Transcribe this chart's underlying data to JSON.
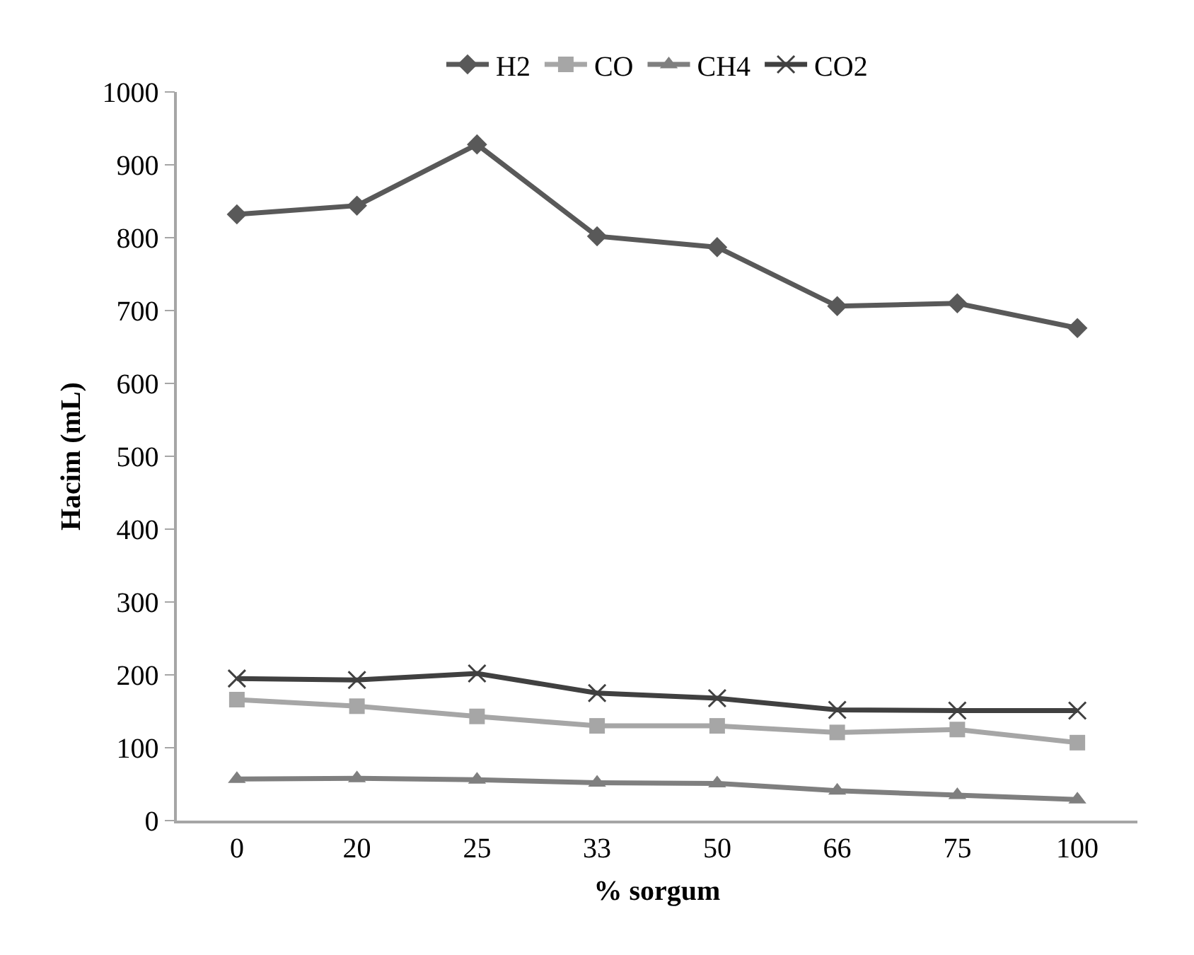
{
  "chart_data": {
    "type": "line",
    "xlabel": "% sorgum",
    "ylabel": "Hacim (mL)",
    "categories": [
      "0",
      "20",
      "25",
      "33",
      "50",
      "66",
      "75",
      "100"
    ],
    "series": [
      {
        "name": "H2",
        "color": "#595959",
        "marker": "diamond",
        "values": [
          832,
          844,
          928,
          802,
          787,
          706,
          710,
          676
        ]
      },
      {
        "name": "CO",
        "color": "#a6a6a6",
        "marker": "square",
        "values": [
          166,
          157,
          143,
          130,
          130,
          121,
          125,
          107
        ]
      },
      {
        "name": "CH4",
        "color": "#7f7f7f",
        "marker": "triangle",
        "values": [
          57,
          58,
          56,
          52,
          51,
          41,
          35,
          29
        ]
      },
      {
        "name": "CO2",
        "color": "#404040",
        "marker": "cross",
        "values": [
          195,
          193,
          202,
          175,
          168,
          152,
          151,
          151
        ]
      }
    ],
    "ylim": [
      0,
      1000
    ],
    "yticks": [
      0,
      100,
      200,
      300,
      400,
      500,
      600,
      700,
      800,
      900,
      1000
    ],
    "grid": false,
    "legend": "top",
    "line_style": "solid"
  }
}
